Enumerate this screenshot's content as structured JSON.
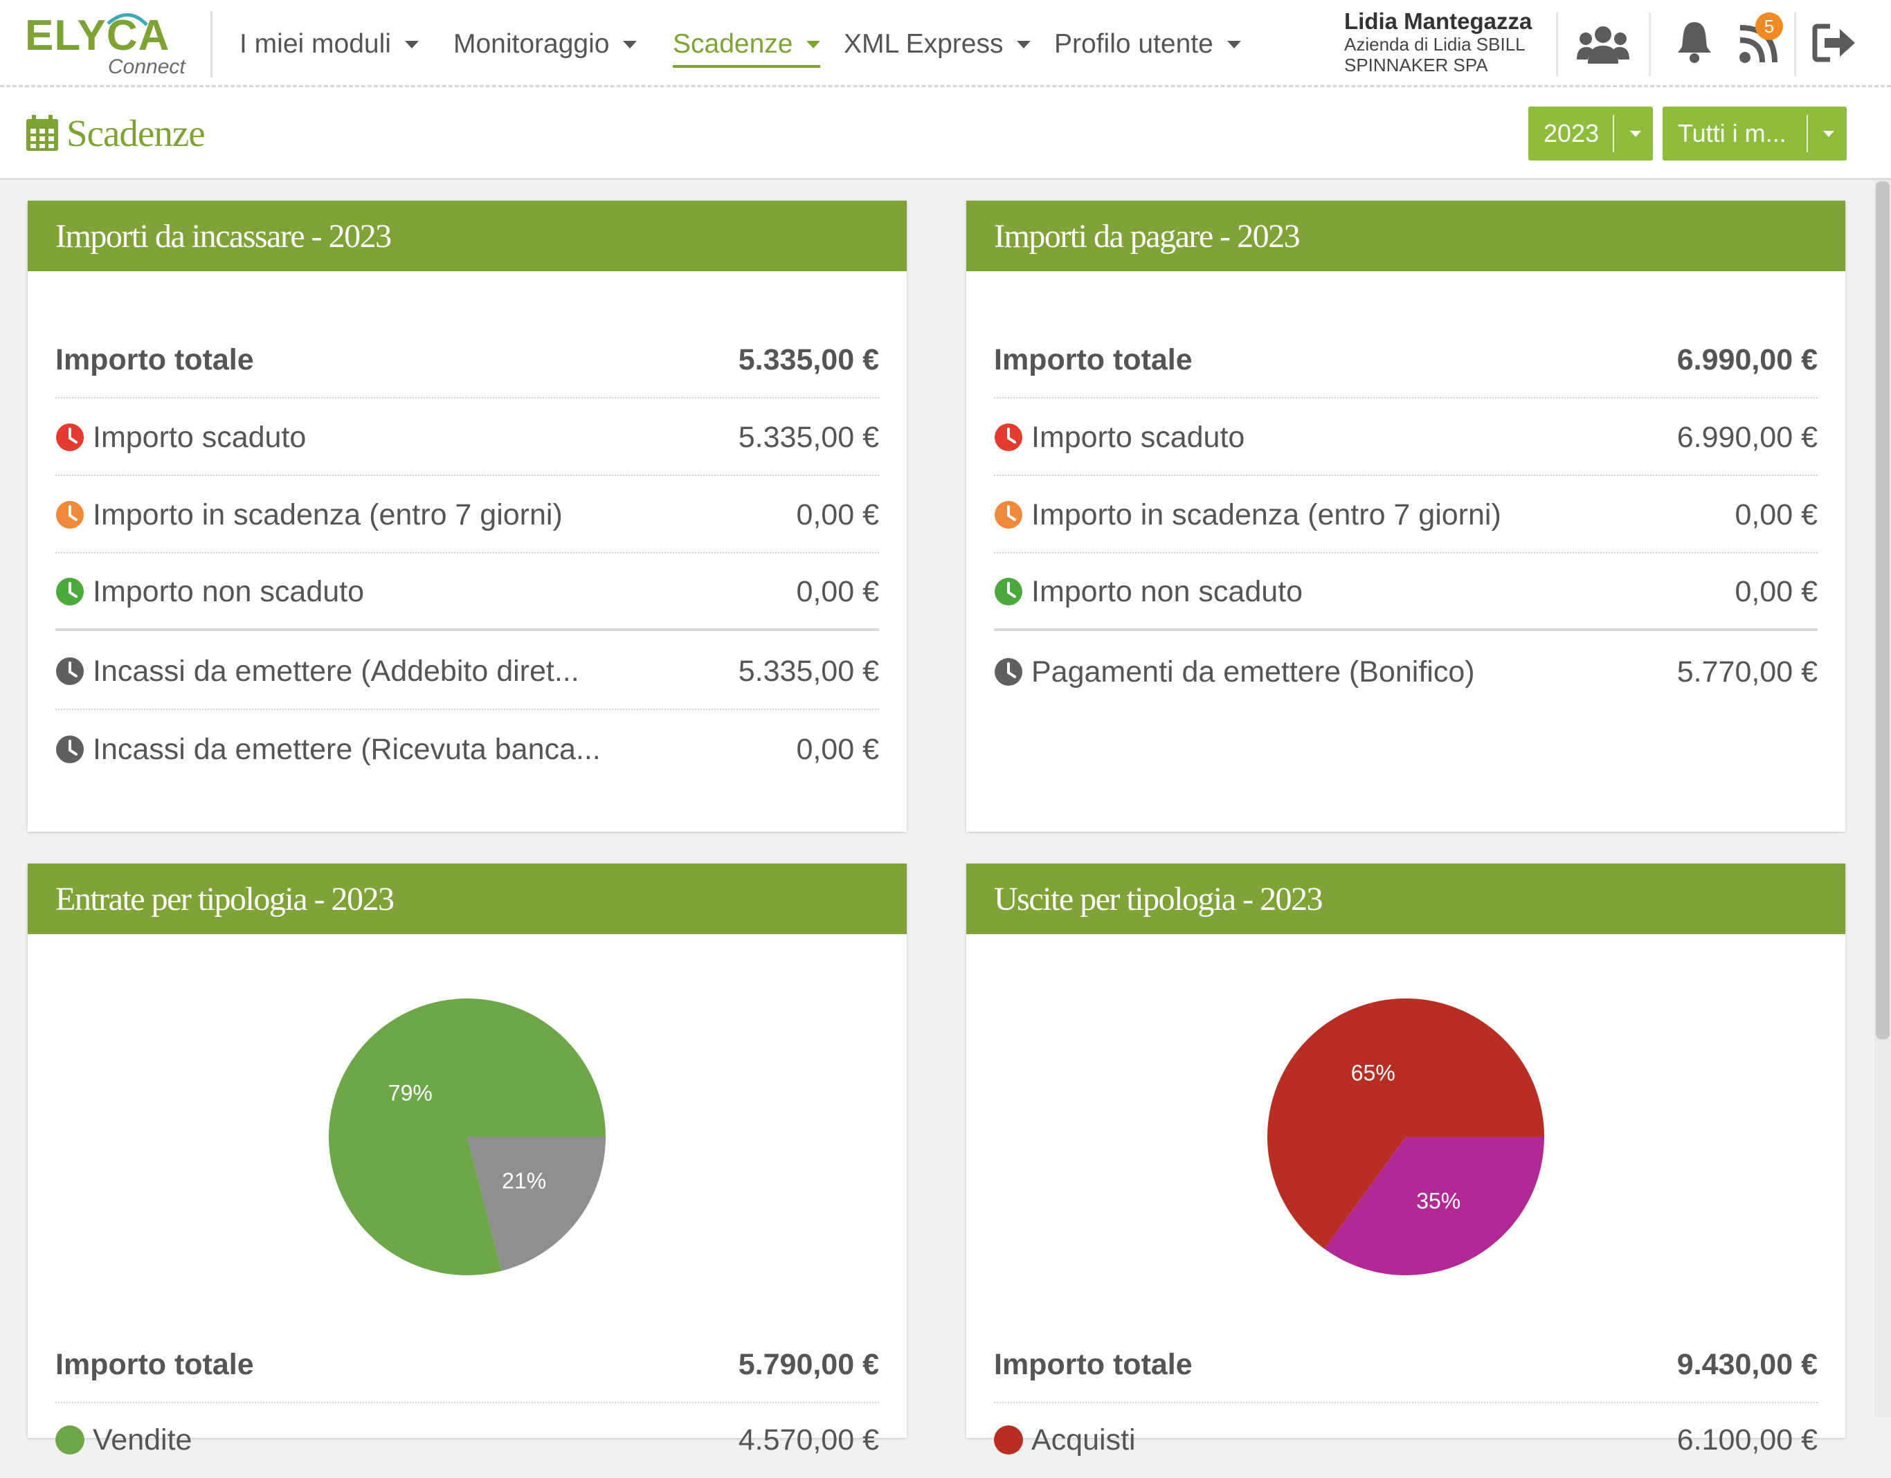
{
  "app": {
    "logo_main": "ELYCA",
    "logo_sub": "Connect"
  },
  "nav": {
    "items": [
      {
        "label": "I miei moduli"
      },
      {
        "label": "Monitoraggio"
      },
      {
        "label": "Scadenze"
      },
      {
        "label": "XML Express"
      },
      {
        "label": "Profilo utente"
      }
    ],
    "active": "Scadenze"
  },
  "user": {
    "name": "Lidia Mantegazza",
    "company_line1": "Azienda di Lidia SBILL",
    "company_line2": "SPINNAKER SPA"
  },
  "top_icons": [
    "users-icon",
    "bell-icon",
    "rss-icon",
    "logout-icon"
  ],
  "notifications_badge": "5",
  "page": {
    "title": "Scadenze",
    "title_icon": "calendar-icon",
    "year_filter": "2023",
    "month_filter": "Tutti i m..."
  },
  "colors": {
    "brand_green": "#7fa336",
    "button_green": "#8dbd3a",
    "expired_red": "#e53a2f",
    "due_orange": "#f0893a",
    "ok_green": "#4caa3c",
    "neutral_grey": "#5f5f5f"
  },
  "panels": {
    "incassare": {
      "title": "Importi da incassare - 2023",
      "rows": [
        {
          "label": "Importo totale",
          "value": "5.335,00 €"
        },
        {
          "label": "Importo scaduto",
          "value": "5.335,00 €",
          "icon": "clock-icon-red"
        },
        {
          "label": "Importo in scadenza (entro 7 giorni)",
          "value": "0,00 €",
          "icon": "clock-icon-orange"
        },
        {
          "label": "Importo non scaduto",
          "value": "0,00 €",
          "icon": "clock-icon-green"
        },
        {
          "label": "Incassi da emettere (Addebito diret...",
          "value": "5.335,00 €",
          "icon": "clock-icon-grey"
        },
        {
          "label": "Incassi da emettere (Ricevuta banca...",
          "value": "0,00 €",
          "icon": "clock-icon-grey"
        }
      ]
    },
    "pagare": {
      "title": "Importi da pagare - 2023",
      "rows": [
        {
          "label": "Importo totale",
          "value": "6.990,00 €"
        },
        {
          "label": "Importo scaduto",
          "value": "6.990,00 €",
          "icon": "clock-icon-red"
        },
        {
          "label": "Importo in scadenza (entro 7 giorni)",
          "value": "0,00 €",
          "icon": "clock-icon-orange"
        },
        {
          "label": "Importo non scaduto",
          "value": "0,00 €",
          "icon": "clock-icon-green"
        },
        {
          "label": "Pagamenti da emettere (Bonifico)",
          "value": "5.770,00 €",
          "icon": "clock-icon-grey"
        }
      ]
    },
    "entrate": {
      "title": "Entrate per tipologia - 2023",
      "total_label": "Importo totale",
      "total_value": "5.790,00 €",
      "legend": [
        {
          "label": "Vendite",
          "value": "4.570,00 €",
          "color": "#6ea64a"
        }
      ]
    },
    "uscite": {
      "title": "Uscite per tipologia - 2023",
      "total_label": "Importo totale",
      "total_value": "9.430,00 €",
      "legend": [
        {
          "label": "Acquisti",
          "value": "6.100,00 €",
          "color": "#b92e22"
        }
      ]
    }
  },
  "chart_data": [
    {
      "type": "pie",
      "slices": [
        {
          "label": "79%",
          "value": 79,
          "color": "#6ea64a"
        },
        {
          "label": "21%",
          "value": 21,
          "color": "#8f8f8f"
        }
      ]
    },
    {
      "type": "pie",
      "slices": [
        {
          "label": "65%",
          "value": 65,
          "color": "#b92e22"
        },
        {
          "label": "35%",
          "value": 35,
          "color": "#b22993"
        }
      ]
    }
  ]
}
